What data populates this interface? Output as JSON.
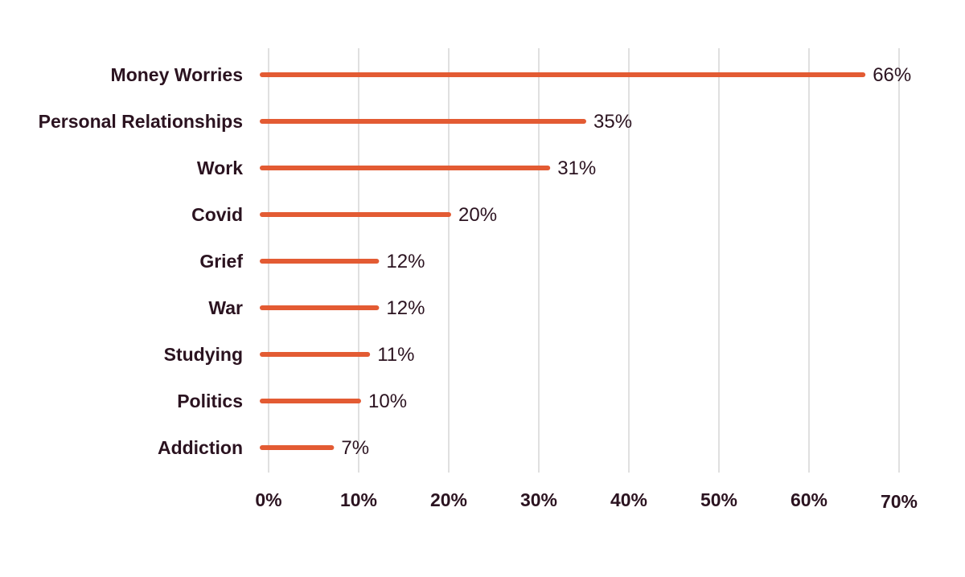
{
  "chart_data": {
    "type": "bar",
    "orientation": "horizontal",
    "title": "",
    "xlabel": "",
    "ylabel": "",
    "categories": [
      "Money Worries",
      "Personal Relationships",
      "Work",
      "Covid",
      "Grief",
      "War",
      "Studying",
      "Politics",
      "Addiction"
    ],
    "values": [
      66,
      35,
      31,
      20,
      12,
      12,
      11,
      10,
      7
    ],
    "value_labels": [
      "66%",
      "35%",
      "31%",
      "20%",
      "12%",
      "12%",
      "11%",
      "10%",
      "7%"
    ],
    "xlim": [
      0,
      70
    ],
    "x_ticks": [
      0,
      10,
      20,
      30,
      40,
      50,
      60,
      70
    ],
    "x_tick_labels": [
      "0%",
      "10%",
      "20%",
      "30%",
      "40%",
      "50%",
      "60%",
      "70%"
    ],
    "grid": "vertical",
    "legend": "none",
    "bar_color": "#e35b33"
  }
}
